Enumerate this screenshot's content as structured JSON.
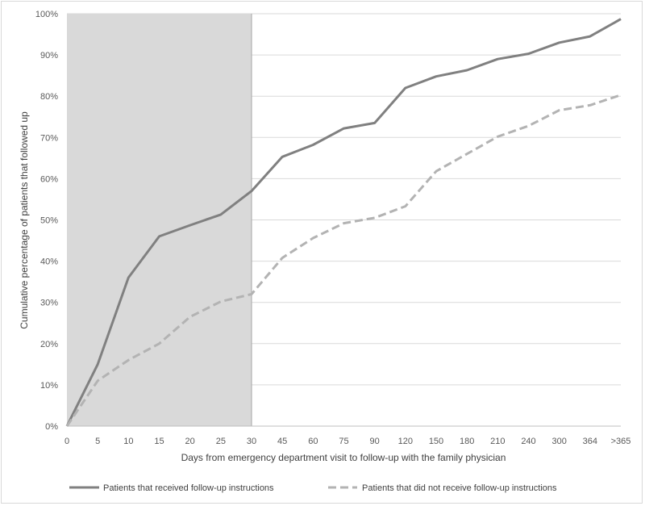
{
  "chart_data": {
    "type": "line",
    "title": "",
    "xlabel": "Days from emergency department visit to follow-up with the family physician",
    "ylabel": "Cumulative percentage of patients that followed up",
    "categories": [
      "0",
      "5",
      "10",
      "15",
      "20",
      "25",
      "30",
      "45",
      "60",
      "75",
      "90",
      "120",
      "150",
      "180",
      "210",
      "240",
      "300",
      "364",
      ">365"
    ],
    "yticks": [
      "0%",
      "10%",
      "20%",
      "30%",
      "40%",
      "50%",
      "60%",
      "70%",
      "80%",
      "90%",
      "100%"
    ],
    "ylim": [
      0,
      100
    ],
    "grid": "horizontal",
    "legend": "bottom",
    "highlight_region": {
      "from": "0",
      "to": "30",
      "color": "#d9d9d9"
    },
    "series": [
      {
        "name": "Patients that received follow-up instructions",
        "style": "solid",
        "color": "#808080",
        "values": [
          0,
          15,
          36,
          46,
          48.7,
          51.3,
          57,
          65.3,
          68.2,
          72.2,
          73.5,
          82,
          84.8,
          86.3,
          89,
          90.3,
          93,
          94.5,
          98.7
        ]
      },
      {
        "name": "Patients that did not receive follow-up instructions",
        "style": "dashed",
        "color": "#b3b3b3",
        "values": [
          0,
          11,
          16,
          20,
          26.5,
          30.2,
          32,
          40.8,
          45.6,
          49.2,
          50.5,
          53.3,
          61.8,
          66,
          70.2,
          72.8,
          76.6,
          77.8,
          80.3
        ]
      }
    ]
  }
}
